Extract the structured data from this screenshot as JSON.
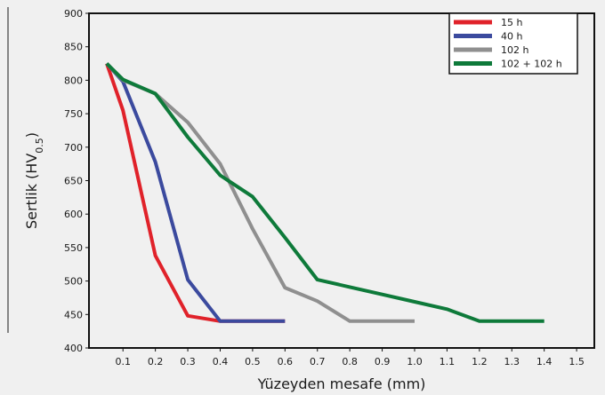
{
  "chart_data": {
    "type": "line",
    "title": "",
    "xlabel": "Yüzeyden mesafe  (mm)",
    "ylabel": "Sertlik (HV",
    "ylabel_subscript": "0.5",
    "ylabel_suffix": ")",
    "xlim": [
      0,
      1.5
    ],
    "ylim": [
      400,
      900
    ],
    "xticks": [
      0.1,
      0.2,
      0.3,
      0.4,
      0.5,
      0.6,
      0.7,
      0.8,
      0.9,
      1.0,
      1.1,
      1.2,
      1.3,
      1.4,
      1.5
    ],
    "xtick_labels": [
      "0.1",
      "0.2",
      "0.3",
      "0.4",
      "0.5",
      "0.6",
      "0.7",
      "0.8",
      "0.9",
      "1.0",
      "1.1",
      "1.2",
      "1.3",
      "1.4",
      "1.5"
    ],
    "yticks": [
      400,
      450,
      500,
      550,
      600,
      650,
      700,
      750,
      800,
      850,
      900
    ],
    "ytick_labels": [
      "400",
      "450",
      "500",
      "550",
      "600",
      "650",
      "700",
      "750",
      "800",
      "850",
      "900"
    ],
    "grid": false,
    "legend_position": "top-right",
    "series": [
      {
        "name": "15 h",
        "color": "#e0222a",
        "x": [
          0.05,
          0.1,
          0.2,
          0.3,
          0.4,
          0.6
        ],
        "y": [
          825,
          755,
          538,
          448,
          440,
          440
        ]
      },
      {
        "name": "40 h",
        "color": "#3b4a9e",
        "x": [
          0.05,
          0.1,
          0.2,
          0.3,
          0.4,
          0.6
        ],
        "y": [
          825,
          798,
          678,
          502,
          440,
          440
        ]
      },
      {
        "name": "102 h",
        "color": "#8f8f8f",
        "x": [
          0.05,
          0.1,
          0.2,
          0.3,
          0.4,
          0.5,
          0.6,
          0.7,
          0.8,
          1.0
        ],
        "y": [
          825,
          800,
          780,
          737,
          675,
          578,
          490,
          470,
          440,
          440
        ]
      },
      {
        "name": "102 + 102 h",
        "color": "#0e7a3a",
        "x": [
          0.05,
          0.1,
          0.2,
          0.3,
          0.4,
          0.5,
          0.6,
          0.7,
          0.8,
          0.9,
          1.0,
          1.1,
          1.2,
          1.4
        ],
        "y": [
          825,
          801,
          780,
          715,
          658,
          626,
          565,
          502,
          491,
          480,
          469,
          458,
          440,
          440
        ]
      }
    ]
  }
}
